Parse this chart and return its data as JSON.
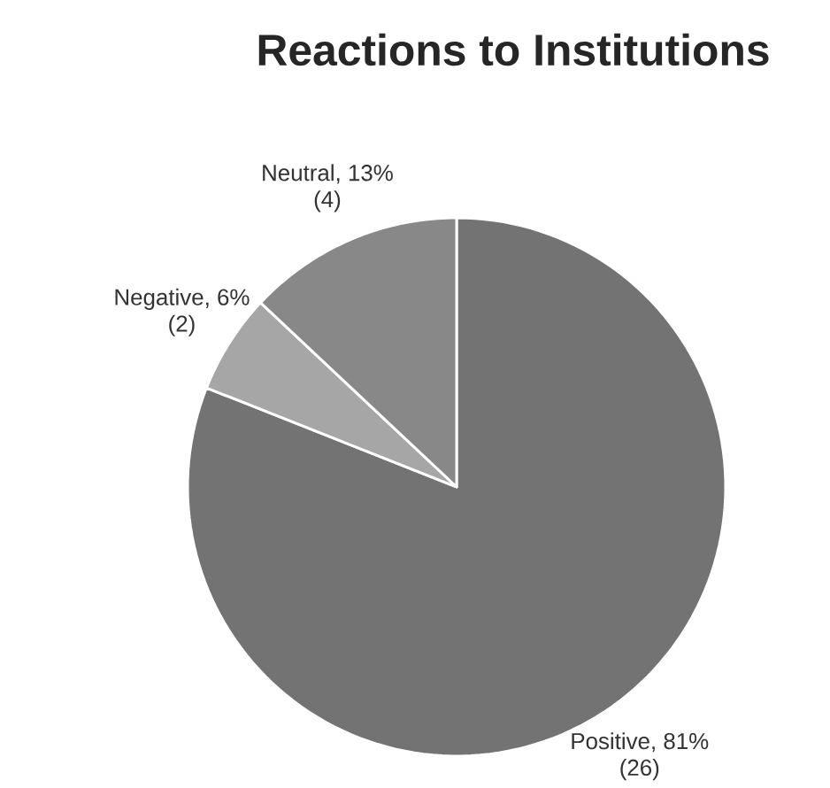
{
  "chart_data": {
    "type": "pie",
    "title": "Reactions to Institutions",
    "categories": [
      "Positive, 81%",
      "Negative, 6%",
      "Neutral, 13%"
    ],
    "values": [
      81,
      6,
      13
    ],
    "colors": [
      "#737373",
      "#a6a6a6",
      "#888888"
    ],
    "annotations": [
      {
        "text": "(26)",
        "x": "Positive, 81%"
      },
      {
        "text": "(2)",
        "x": "Negative, 6%"
      },
      {
        "text": "(4)",
        "x": "Neutral, 13%"
      }
    ]
  }
}
